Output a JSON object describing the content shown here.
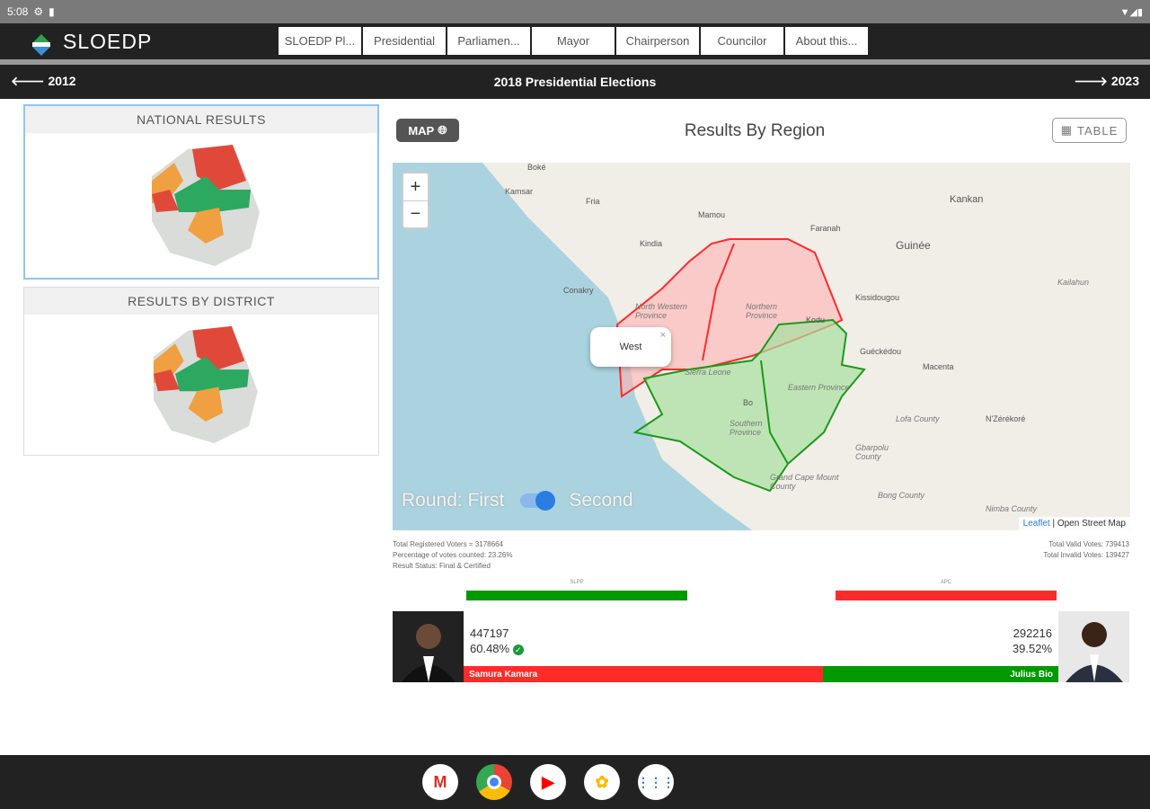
{
  "status_bar": {
    "time": "5:08"
  },
  "app": {
    "name": "SLOEDP"
  },
  "nav": {
    "tabs": [
      "SLOEDP Pl...",
      "Presidential",
      "Parliamen...",
      "Mayor",
      "Chairperson",
      "Councilor",
      "About this..."
    ]
  },
  "year_bar": {
    "prev": "2012",
    "title": "2018 Presidential Elections",
    "next": "2023"
  },
  "sidebar": {
    "national": "NATIONAL RESULTS",
    "district": "RESULTS BY DISTRICT"
  },
  "main": {
    "map_button": "MAP",
    "title": "Results By Region",
    "table_button": "TABLE"
  },
  "map": {
    "zoom_in": "+",
    "zoom_out": "−",
    "popup": "West",
    "popup_close": "×",
    "round_label": "Round: First",
    "round_second": "Second",
    "round_value": "Second",
    "attribution_leaflet": "Leaflet",
    "attribution_rest": "| Open Street Map",
    "places": [
      "Boké",
      "Kamsar",
      "Fria",
      "Mamou",
      "Faranah",
      "Kankan",
      "Kindia",
      "Conakry",
      "Guinée",
      "Kissidougou",
      "Guéckédou",
      "Macenta",
      "N'Zérékoré",
      "Kailahun",
      "Lofa County",
      "Gbarpolu County",
      "Bong County",
      "Nimba County",
      "Kodu",
      "Bo",
      "North Western Province",
      "Northern Province",
      "Eastern Province",
      "Southern Province",
      "Grand Cape Mount County",
      "Sierra Leone"
    ],
    "region_colors": {
      "apc": "#ff4d4d",
      "slpp": "#2ca02c"
    }
  },
  "stats": {
    "registered": "Total Registered Voters = 3178664",
    "percent_counted": "Percentage of votes counted: 23.26%",
    "status": "Result Status: Final & Certified",
    "valid": "Total Valid Votes: 739413",
    "invalid": "Total Invalid Votes: 139427"
  },
  "parties": [
    {
      "name": "SLPP",
      "color": "#009900"
    },
    {
      "name": "APC",
      "color": "#ff2a2a"
    }
  ],
  "candidates": [
    {
      "name": "Samura Kamara",
      "votes": "447197",
      "percent": "60.48%",
      "share": 60.48,
      "color": "#ff2a2a"
    },
    {
      "name": "Julius Bio",
      "votes": "292216",
      "percent": "39.52%",
      "share": 39.52,
      "color": "#009900"
    }
  ],
  "dock": [
    "Gmail",
    "Chrome",
    "YouTube",
    "Photos",
    "Apps"
  ]
}
